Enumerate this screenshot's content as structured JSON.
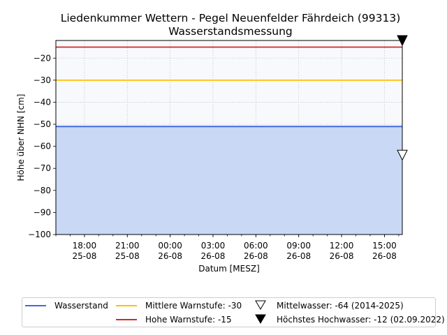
{
  "chart_data": {
    "type": "area",
    "title": "Liedenkummer Wettern - Pegel Neuenfelder Fährdeich (99313)",
    "subtitle": "Wasserstandsmessung",
    "xlabel": "Datum [MESZ]",
    "ylabel": "Höhe über NHN [cm]",
    "xlim": [
      "2025-08-25 16:00",
      "2025-08-26 16:15"
    ],
    "ylim": [
      -100,
      -12
    ],
    "yticks": [
      -100,
      -90,
      -80,
      -70,
      -60,
      -50,
      -40,
      -30,
      -20
    ],
    "ytick_labels": [
      "−100",
      "−90",
      "−80",
      "−70",
      "−60",
      "−50",
      "−40",
      "−30",
      "−20"
    ],
    "xticks": [
      {
        "time": "2025-08-25 18:00",
        "label1": "18:00",
        "label2": "25-08"
      },
      {
        "time": "2025-08-25 21:00",
        "label1": "21:00",
        "label2": "25-08"
      },
      {
        "time": "2025-08-26 00:00",
        "label1": "00:00",
        "label2": "26-08"
      },
      {
        "time": "2025-08-26 03:00",
        "label1": "03:00",
        "label2": "26-08"
      },
      {
        "time": "2025-08-26 06:00",
        "label1": "06:00",
        "label2": "26-08"
      },
      {
        "time": "2025-08-26 09:00",
        "label1": "09:00",
        "label2": "26-08"
      },
      {
        "time": "2025-08-26 12:00",
        "label1": "12:00",
        "label2": "26-08"
      },
      {
        "time": "2025-08-26 15:00",
        "label1": "15:00",
        "label2": "26-08"
      }
    ],
    "grid": true,
    "series": [
      {
        "name": "Wasserstand",
        "color": "#4169e1",
        "fill": "#c9d8f5",
        "x": [
          "2025-08-25 16:00",
          "2025-08-25 20:00",
          "2025-08-26 00:00",
          "2025-08-26 04:00",
          "2025-08-26 08:00",
          "2025-08-26 12:00",
          "2025-08-26 16:15"
        ],
        "y": [
          -51,
          -51,
          -51,
          -51,
          -51,
          -51,
          -51
        ]
      }
    ],
    "reference_lines": [
      {
        "name": "Mittlere Warnstufe: -30",
        "value": -30,
        "color": "#ffc000"
      },
      {
        "name": "Hohe Warnstufe: -15",
        "value": -15,
        "color": "#d62728"
      }
    ],
    "markers": [
      {
        "name": "Mittelwasser: -64 (2014-2025)",
        "value": -64,
        "shape": "triangle-down-open"
      },
      {
        "name": "Höchstes Hochwasser: -12 (02.09.2022)",
        "value": -12,
        "shape": "triangle-down-filled"
      }
    ],
    "legend_position": "bottom-center"
  }
}
